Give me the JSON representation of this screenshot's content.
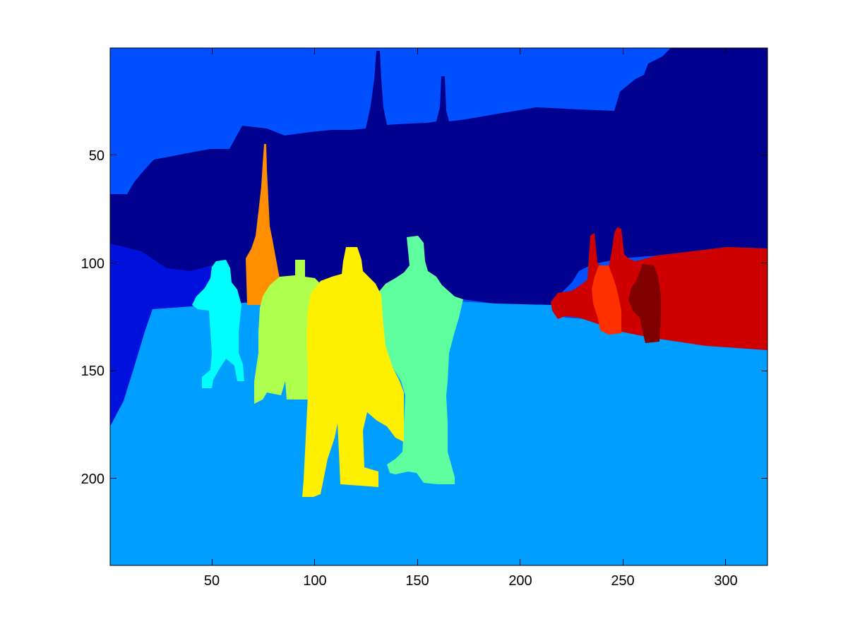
{
  "figure": {
    "background": "#ffffff",
    "image_kind": "segmentation label map rendered with jet colormap",
    "x_ticks": [
      "50",
      "100",
      "150",
      "200",
      "250",
      "300"
    ],
    "y_ticks": [
      "50",
      "100",
      "150",
      "200"
    ],
    "x_tick_values": [
      50,
      100,
      150,
      200,
      250,
      300
    ],
    "y_tick_values": [
      50,
      100,
      150,
      200
    ],
    "x_range": [
      0.5,
      320.5
    ],
    "y_range": [
      0.5,
      240.5
    ],
    "y_direction": "top-down",
    "regions": [
      {
        "name": "upper-sky-region",
        "color": "#0050ff"
      },
      {
        "name": "background-buildings-region",
        "color": "#00008f"
      },
      {
        "name": "left-wall-region",
        "color": "#0010dd"
      },
      {
        "name": "ground-region",
        "color": "#009fff"
      },
      {
        "name": "person-cyan-region",
        "color": "#00ffff"
      },
      {
        "name": "pole-orange-region",
        "color": "#ff8f00"
      },
      {
        "name": "person-lime-region",
        "color": "#afff4f"
      },
      {
        "name": "person-yellow-region",
        "color": "#ffef00"
      },
      {
        "name": "person-green-region",
        "color": "#5fffa0"
      },
      {
        "name": "right-structure-red-region",
        "color": "#cf0000"
      },
      {
        "name": "right-object-orange-red-region",
        "color": "#ff3000"
      },
      {
        "name": "right-object-dark-red-region",
        "color": "#800000"
      }
    ]
  }
}
